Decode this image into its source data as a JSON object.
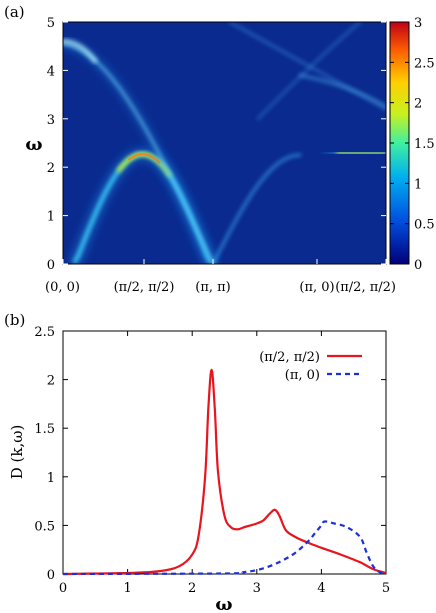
{
  "chart_data": [
    {
      "type": "heatmap",
      "panel_label": "(a)",
      "ylabel": "ω",
      "ylim": [
        0,
        5
      ],
      "y_ticks": [
        "0",
        "1",
        "2",
        "3",
        "4",
        "5"
      ],
      "x_tick_labels": [
        "(0, 0)",
        "(π/2, π/2)",
        "(π, π)",
        "(π, 0)",
        "(π/2, π/2)"
      ],
      "colorbar": {
        "range": [
          0,
          3
        ],
        "ticks": [
          "0",
          "0.5",
          "1",
          "1.5",
          "2",
          "2.5",
          "3"
        ]
      },
      "features": [
        {
          "segment": "(0,0)-(π/2,π/2)",
          "omega_peak": 2.25,
          "intensity": 2.1
        },
        {
          "segment": "(0,0)-(π/2,π/2)",
          "omega_peak": 4.55,
          "intensity": 0.9
        },
        {
          "segment": "(π,0)-(π/2,π/2)",
          "omega_peak": 2.3,
          "intensity": 1.6
        }
      ],
      "colors": {
        "low": "#0a2a8f",
        "high": "#d0001e"
      }
    },
    {
      "type": "line",
      "panel_label": "(b)",
      "xlabel": "ω",
      "ylabel": "D (k,ω)",
      "xlim": [
        0,
        5
      ],
      "ylim": [
        0,
        2.5
      ],
      "x_ticks": [
        "0",
        "1",
        "2",
        "3",
        "4",
        "5"
      ],
      "y_ticks": [
        "0",
        "0.5",
        "1",
        "1.5",
        "2",
        "2.5"
      ],
      "legend_position": "top-right",
      "series": [
        {
          "name": "(π/2, π/2)",
          "color": "#e8141e",
          "style": "solid",
          "x": [
            0,
            1.0,
            1.5,
            1.8,
            2.0,
            2.1,
            2.2,
            2.25,
            2.3,
            2.35,
            2.4,
            2.5,
            2.6,
            2.7,
            2.8,
            2.9,
            3.0,
            3.1,
            3.2,
            3.28,
            3.35,
            3.45,
            3.6,
            3.8,
            4.0,
            4.3,
            4.6,
            4.8,
            5.0
          ],
          "y": [
            0,
            0.01,
            0.03,
            0.08,
            0.2,
            0.4,
            1.0,
            1.7,
            2.1,
            1.7,
            1.05,
            0.6,
            0.48,
            0.46,
            0.48,
            0.5,
            0.52,
            0.55,
            0.62,
            0.66,
            0.6,
            0.45,
            0.38,
            0.32,
            0.27,
            0.2,
            0.12,
            0.05,
            0.01
          ]
        },
        {
          "name": "(π, 0)",
          "color": "#1d2fd6",
          "style": "dashed",
          "x": [
            0,
            2.5,
            2.8,
            3.0,
            3.2,
            3.4,
            3.6,
            3.8,
            3.9,
            4.0,
            4.05,
            4.2,
            4.4,
            4.6,
            4.7,
            4.8,
            4.9,
            5.0
          ],
          "y": [
            0,
            0.005,
            0.02,
            0.04,
            0.08,
            0.14,
            0.22,
            0.34,
            0.42,
            0.5,
            0.54,
            0.52,
            0.48,
            0.38,
            0.22,
            0.08,
            0.02,
            0.0
          ]
        }
      ]
    }
  ]
}
